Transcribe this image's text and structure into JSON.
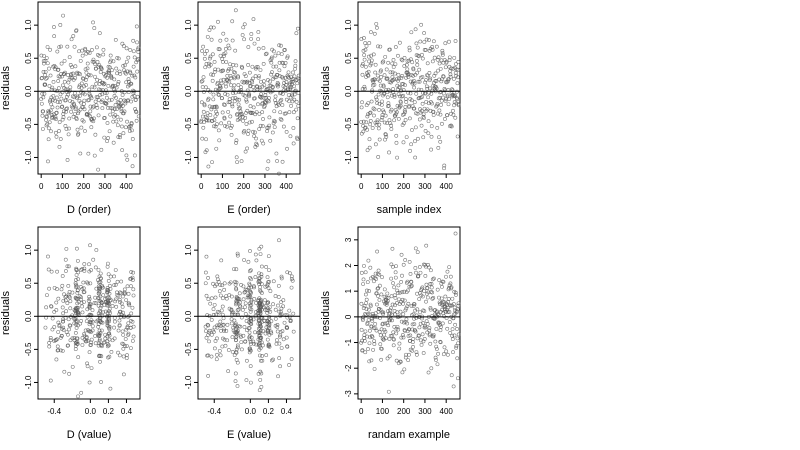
{
  "chart_data": [
    {
      "type": "scatter",
      "xlabel": "D (order)",
      "ylabel": "residuals",
      "x_ticks": [
        0,
        100,
        200,
        300,
        400
      ],
      "y_ticks": [
        -1.0,
        -0.5,
        0.0,
        0.5,
        1.0
      ],
      "x_tick_labels": [
        "0",
        "100",
        "200",
        "300",
        "400"
      ],
      "y_tick_labels": [
        "-1.0",
        "-0.5",
        "0.0",
        "0.5",
        "1.0"
      ],
      "xlim": [
        -15,
        465
      ],
      "ylim": [
        -1.25,
        1.35
      ],
      "reference_line_y": 0,
      "n_points": 460,
      "x_kind": "index",
      "seed": 11,
      "sd": 0.42
    },
    {
      "type": "scatter",
      "xlabel": "E (order)",
      "ylabel": "residuals",
      "x_ticks": [
        0,
        100,
        200,
        300,
        400
      ],
      "y_ticks": [
        -1.0,
        -0.5,
        0.0,
        0.5,
        1.0
      ],
      "x_tick_labels": [
        "0",
        "100",
        "200",
        "300",
        "400"
      ],
      "y_tick_labels": [
        "-1.0",
        "-0.5",
        "0.0",
        "0.5",
        "1.0"
      ],
      "xlim": [
        -15,
        465
      ],
      "ylim": [
        -1.25,
        1.35
      ],
      "reference_line_y": 0,
      "n_points": 460,
      "x_kind": "index",
      "seed": 23,
      "sd": 0.42
    },
    {
      "type": "scatter",
      "xlabel": "sample index",
      "ylabel": "residuals",
      "x_ticks": [
        0,
        100,
        200,
        300,
        400
      ],
      "y_ticks": [
        -1.0,
        -0.5,
        0.0,
        0.5,
        1.0
      ],
      "x_tick_labels": [
        "0",
        "100",
        "200",
        "300",
        "400"
      ],
      "y_tick_labels": [
        "-1.0",
        "-0.5",
        "0.0",
        "0.5",
        "1.0"
      ],
      "xlim": [
        -15,
        465
      ],
      "ylim": [
        -1.25,
        1.35
      ],
      "reference_line_y": 0,
      "n_points": 460,
      "x_kind": "index",
      "seed": 37,
      "sd": 0.42
    },
    {
      "type": "scatter",
      "xlabel": "D (value)",
      "ylabel": "residuals",
      "x_ticks": [
        -0.4,
        0.0,
        0.2,
        0.4
      ],
      "y_ticks": [
        -1.0,
        -0.5,
        0.0,
        0.5,
        1.0
      ],
      "x_tick_labels": [
        "-0.4",
        "0.0",
        "0.2",
        "0.4"
      ],
      "y_tick_labels": [
        "-1.0",
        "-0.5",
        "0.0",
        "0.5",
        "1.0"
      ],
      "xlim": [
        -0.58,
        0.55
      ],
      "ylim": [
        -1.25,
        1.35
      ],
      "reference_line_y": 0,
      "n_points": 460,
      "x_kind": "value",
      "seed": 41,
      "sd": 0.42
    },
    {
      "type": "scatter",
      "xlabel": "E (value)",
      "ylabel": "residuals",
      "x_ticks": [
        -0.4,
        0.0,
        0.2,
        0.4
      ],
      "y_ticks": [
        -1.0,
        -0.5,
        0.0,
        0.5,
        1.0
      ],
      "x_tick_labels": [
        "-0.4",
        "0.0",
        "0.2",
        "0.4"
      ],
      "y_tick_labels": [
        "-1.0",
        "-0.5",
        "0.0",
        "0.5",
        "1.0"
      ],
      "xlim": [
        -0.58,
        0.55
      ],
      "ylim": [
        -1.25,
        1.35
      ],
      "reference_line_y": 0,
      "n_points": 460,
      "x_kind": "value",
      "seed": 53,
      "sd": 0.42
    },
    {
      "type": "scatter",
      "xlabel": "randam example",
      "ylabel": "residuals",
      "x_ticks": [
        0,
        100,
        200,
        300,
        400
      ],
      "y_ticks": [
        -3,
        -2,
        -1,
        0,
        1,
        2,
        3
      ],
      "x_tick_labels": [
        "0",
        "100",
        "200",
        "300",
        "400"
      ],
      "y_tick_labels": [
        "-3",
        "-2",
        "-1",
        "0",
        "1",
        "2",
        "3"
      ],
      "xlim": [
        -15,
        465
      ],
      "ylim": [
        -3.2,
        3.5
      ],
      "reference_line_y": 0,
      "n_points": 460,
      "x_kind": "index",
      "seed": 67,
      "sd": 1.0
    }
  ],
  "colors": {
    "point_stroke": "#555555",
    "axis": "#000000",
    "background": "#ffffff"
  }
}
